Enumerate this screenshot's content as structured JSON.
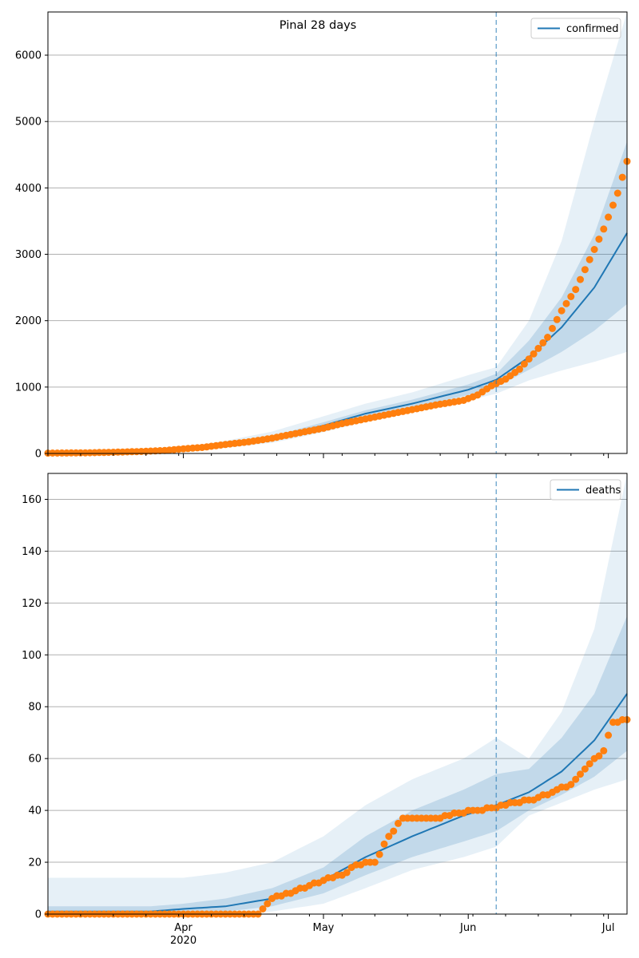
{
  "figure": {
    "title": "Pinal 28 days"
  },
  "chart_data": [
    {
      "type": "line",
      "title": "Pinal 28 days",
      "xlabel": "",
      "ylabel": "",
      "xlim": [
        "2020-03-03",
        "2020-07-05"
      ],
      "ylim": [
        0,
        6650
      ],
      "yticks": [
        0,
        1000,
        2000,
        3000,
        4000,
        5000,
        6000
      ],
      "x_tick_labels": [
        {
          "date": "2020-04-01",
          "label": "Apr"
        },
        {
          "date": "2020-05-01",
          "label": "May"
        },
        {
          "date": "2020-06-01",
          "label": "Jun"
        },
        {
          "date": "2020-07-01",
          "label": "Jul"
        }
      ],
      "grid": "horizontal",
      "legend": "top-right",
      "legend_entries": [
        "confirmed"
      ],
      "vline_date": "2020-06-07",
      "colors": {
        "line": "#1f77b4",
        "points": "#ff7f0e",
        "band": "#1f77b4",
        "vline": "#1f77b4"
      },
      "series": [
        {
          "name": "confirmed",
          "x": [
            "2020-03-03",
            "2020-03-10",
            "2020-03-20",
            "2020-04-01",
            "2020-04-10",
            "2020-04-20",
            "2020-05-01",
            "2020-05-10",
            "2020-05-20",
            "2020-06-01",
            "2020-06-07",
            "2020-06-14",
            "2020-06-21",
            "2020-06-28",
            "2020-07-05"
          ],
          "values": [
            5,
            10,
            20,
            60,
            130,
            230,
            420,
            600,
            750,
            960,
            1110,
            1450,
            1900,
            2500,
            3320
          ],
          "band_inner_low": [
            5,
            8,
            15,
            50,
            110,
            200,
            380,
            550,
            690,
            880,
            1000,
            1260,
            1530,
            1850,
            2250
          ],
          "band_inner_high": [
            5,
            12,
            25,
            70,
            150,
            260,
            470,
            650,
            810,
            1040,
            1200,
            1700,
            2350,
            3300,
            4700
          ],
          "band_outer_low": [
            2,
            4,
            8,
            35,
            85,
            160,
            320,
            480,
            620,
            800,
            900,
            1100,
            1250,
            1380,
            1530
          ],
          "band_outer_high": [
            10,
            20,
            40,
            95,
            190,
            330,
            560,
            750,
            920,
            1180,
            1300,
            2000,
            3200,
            5000,
            6650
          ]
        },
        {
          "type": "scatter",
          "name": "",
          "x": [
            "2020-03-03",
            "2020-03-08",
            "2020-03-13",
            "2020-03-18",
            "2020-03-23",
            "2020-03-28",
            "2020-04-01",
            "2020-04-05",
            "2020-04-10",
            "2020-04-15",
            "2020-04-20",
            "2020-04-25",
            "2020-05-01",
            "2020-05-05",
            "2020-05-10",
            "2020-05-15",
            "2020-05-20",
            "2020-05-25",
            "2020-05-31",
            "2020-06-03",
            "2020-06-06",
            "2020-06-09",
            "2020-06-12",
            "2020-06-15",
            "2020-06-18",
            "2020-06-21",
            "2020-06-24",
            "2020-06-27",
            "2020-06-30",
            "2020-07-03",
            "2020-07-05"
          ],
          "values": [
            5,
            8,
            12,
            20,
            30,
            45,
            70,
            90,
            135,
            175,
            230,
            300,
            380,
            450,
            520,
            590,
            660,
            730,
            800,
            880,
            1020,
            1120,
            1270,
            1500,
            1750,
            2150,
            2470,
            2920,
            3380,
            3920,
            4400
          ]
        }
      ]
    },
    {
      "type": "line",
      "title": "",
      "xlabel": "",
      "ylabel": "",
      "xlim": [
        "2020-03-03",
        "2020-07-05"
      ],
      "ylim": [
        0,
        170
      ],
      "yticks": [
        0,
        20,
        40,
        60,
        80,
        100,
        120,
        140,
        160
      ],
      "x_tick_labels": [
        {
          "date": "2020-04-01",
          "label": "Apr"
        },
        {
          "date": "2020-05-01",
          "label": "May"
        },
        {
          "date": "2020-06-01",
          "label": "Jun"
        },
        {
          "date": "2020-07-01",
          "label": "Jul"
        }
      ],
      "x_year_label": "2020",
      "grid": "horizontal",
      "legend": "top-right",
      "legend_entries": [
        "deaths"
      ],
      "vline_date": "2020-06-07",
      "colors": {
        "line": "#1f77b4",
        "points": "#ff7f0e",
        "band": "#1f77b4",
        "vline": "#1f77b4"
      },
      "series": [
        {
          "name": "deaths",
          "x": [
            "2020-03-03",
            "2020-03-25",
            "2020-04-01",
            "2020-04-10",
            "2020-04-20",
            "2020-05-01",
            "2020-05-10",
            "2020-05-20",
            "2020-05-31",
            "2020-06-07",
            "2020-06-14",
            "2020-06-21",
            "2020-06-28",
            "2020-07-05"
          ],
          "values": [
            1,
            1,
            2,
            3,
            6,
            13,
            22,
            30,
            38,
            42,
            47,
            55,
            67,
            85
          ],
          "band_inner_low": [
            0,
            0,
            1,
            1,
            3,
            8,
            15,
            22,
            28,
            32,
            40,
            46,
            53,
            63
          ],
          "band_inner_high": [
            3,
            3,
            4,
            6,
            10,
            18,
            30,
            40,
            48,
            54,
            56,
            68,
            85,
            115
          ],
          "band_outer_low": [
            0,
            0,
            0,
            0,
            1,
            4,
            10,
            17,
            22,
            26,
            38,
            43,
            48,
            52
          ],
          "band_outer_high": [
            14,
            14,
            14,
            16,
            20,
            30,
            42,
            52,
            60,
            68,
            60,
            78,
            110,
            170
          ]
        },
        {
          "type": "scatter",
          "name": "",
          "x": [
            "2020-03-03",
            "2020-03-15",
            "2020-03-30",
            "2020-04-10",
            "2020-04-17",
            "2020-04-20",
            "2020-04-25",
            "2020-05-01",
            "2020-05-05",
            "2020-05-08",
            "2020-05-12",
            "2020-05-15",
            "2020-05-18",
            "2020-05-22",
            "2020-05-26",
            "2020-05-30",
            "2020-06-03",
            "2020-06-07",
            "2020-06-11",
            "2020-06-15",
            "2020-06-19",
            "2020-06-23",
            "2020-06-27",
            "2020-06-30",
            "2020-07-02",
            "2020-07-05"
          ],
          "values": [
            0,
            0,
            0,
            0,
            0,
            6,
            9,
            13,
            15,
            19,
            20,
            30,
            37,
            37,
            37,
            39,
            40,
            41,
            43,
            44,
            47,
            50,
            58,
            63,
            74,
            75
          ]
        }
      ]
    }
  ]
}
